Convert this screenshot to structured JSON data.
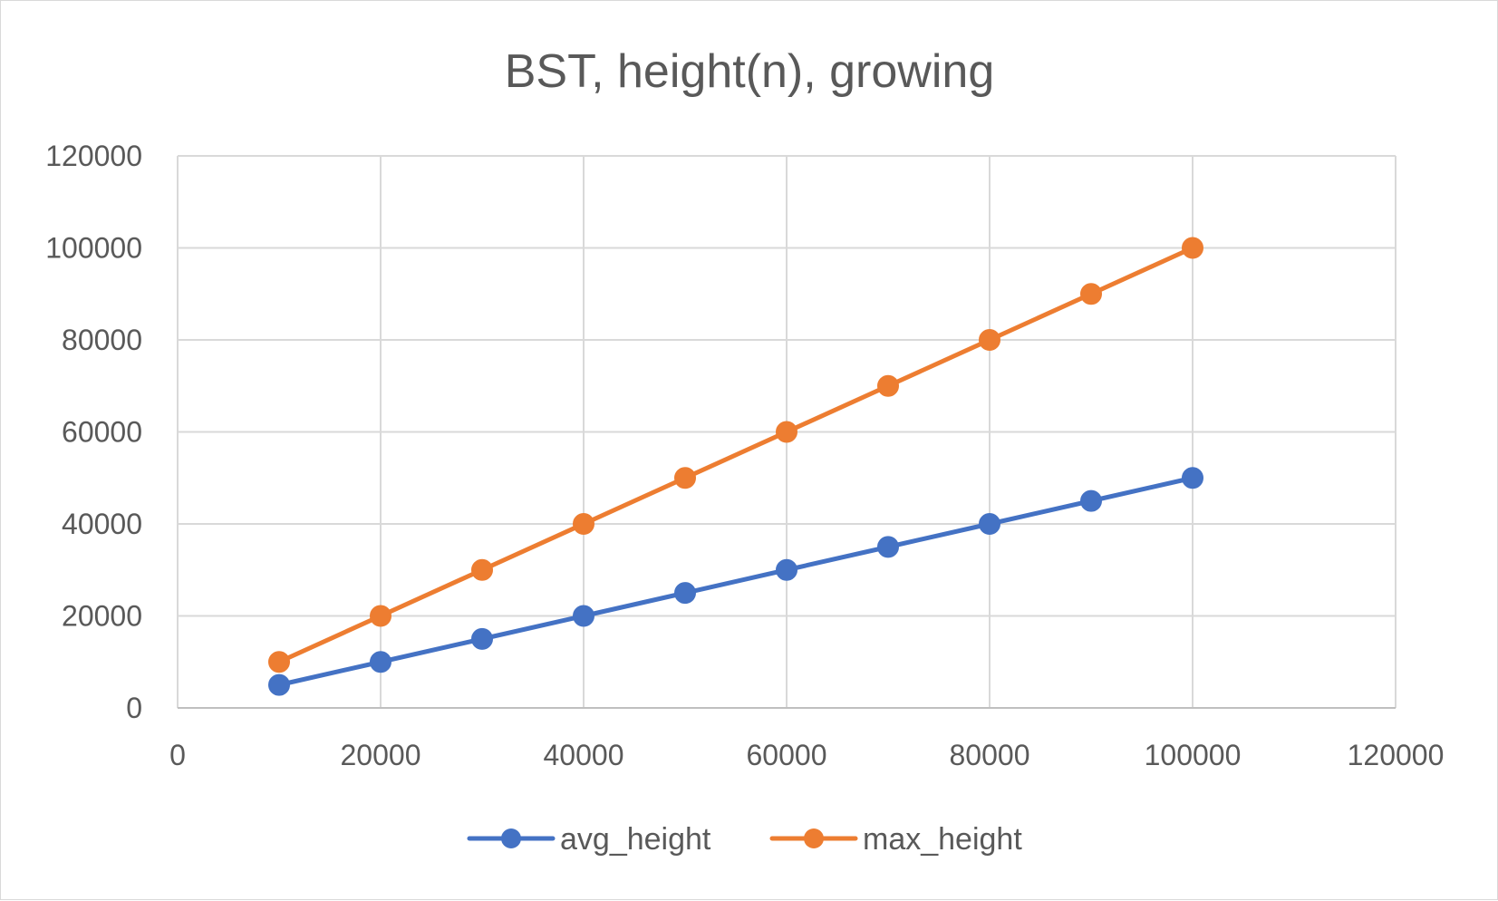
{
  "chart_data": {
    "type": "line",
    "title": "BST, height(n), growing",
    "xlabel": "",
    "ylabel": "",
    "xlim": [
      0,
      120000
    ],
    "ylim": [
      0,
      120000
    ],
    "x_ticks": [
      "0",
      "20000",
      "40000",
      "60000",
      "80000",
      "100000",
      "120000"
    ],
    "y_ticks": [
      "0",
      "20000",
      "40000",
      "60000",
      "80000",
      "100000",
      "120000"
    ],
    "grid": true,
    "legend_position": "bottom",
    "x": [
      10000,
      20000,
      30000,
      40000,
      50000,
      60000,
      70000,
      80000,
      90000,
      100000
    ],
    "series": [
      {
        "name": "avg_height",
        "color": "#4472c4",
        "values": [
          5000,
          10000,
          15000,
          20000,
          25000,
          30000,
          35000,
          40000,
          45000,
          50000
        ]
      },
      {
        "name": "max_height",
        "color": "#ed7d31",
        "values": [
          10000,
          20000,
          30000,
          40000,
          50000,
          60000,
          70000,
          80000,
          90000,
          100000
        ]
      }
    ]
  }
}
